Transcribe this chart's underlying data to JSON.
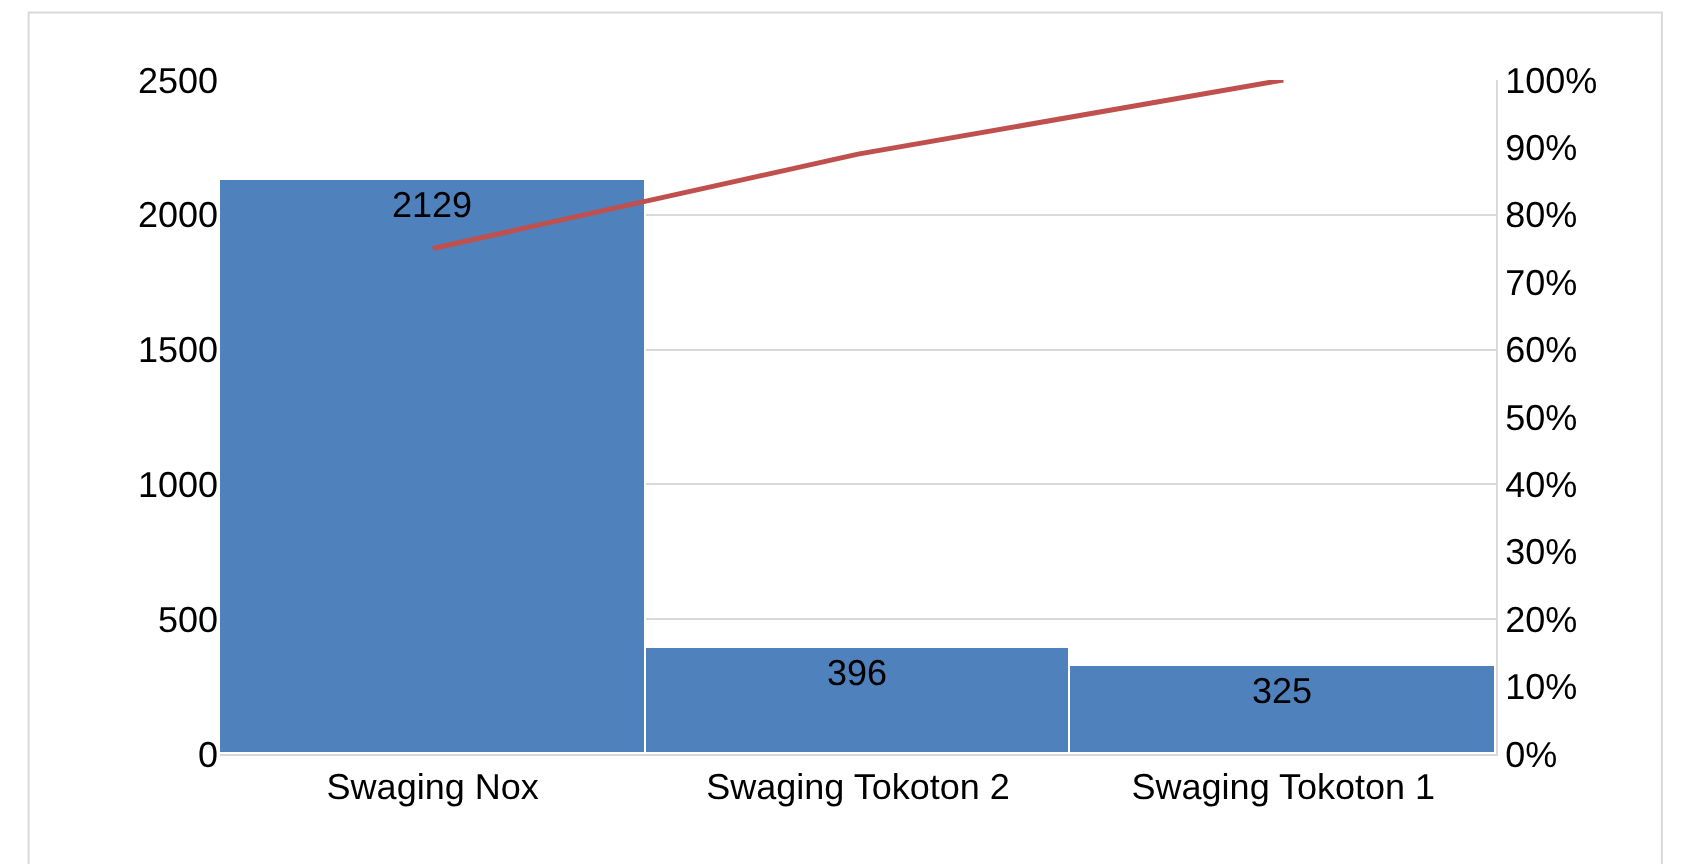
{
  "chart_data": {
    "type": "bar",
    "categories": [
      "Swaging Nox",
      "Swaging Tokoton 2",
      "Swaging Tokoton 1"
    ],
    "series": [
      {
        "color": "#4f81bd",
        "values": [
          2129,
          396,
          325
        ]
      },
      {
        "type": "line",
        "color": "#c0504d",
        "axis": "y2",
        "values": [
          75,
          89,
          100
        ]
      }
    ],
    "value_labels": [
      "2129",
      "396",
      "325"
    ],
    "ylim": [
      0,
      2500
    ],
    "yticks": [
      0,
      500,
      1000,
      1500,
      2000,
      2500
    ],
    "y2lim": [
      0,
      100
    ],
    "y2ticks": [
      {
        "value": 0,
        "label": "0%"
      },
      {
        "value": 10,
        "label": "10%"
      },
      {
        "value": 20,
        "label": "20%"
      },
      {
        "value": 30,
        "label": "30%"
      },
      {
        "value": 40,
        "label": "40%"
      },
      {
        "value": 50,
        "label": "50%"
      },
      {
        "value": 60,
        "label": "60%"
      },
      {
        "value": 70,
        "label": "70%"
      },
      {
        "value": 80,
        "label": "80%"
      },
      {
        "value": 90,
        "label": "90%"
      },
      {
        "value": 100,
        "label": "100%"
      }
    ],
    "grid": "y",
    "marker": "none"
  }
}
